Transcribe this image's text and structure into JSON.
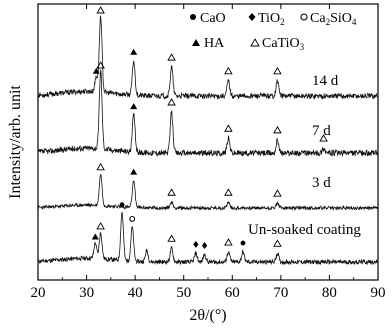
{
  "chart_data": {
    "type": "line",
    "xlabel": "2θ/(°)",
    "ylabel": "Intensity/arb. unit",
    "xlim": [
      20,
      90
    ],
    "xticks": [
      20,
      30,
      40,
      50,
      60,
      70,
      80,
      90
    ],
    "yticks": "none",
    "grid": false,
    "legend_placement": "top",
    "legend": {
      "CaO": "CaO",
      "TiO2": "TiO",
      "TiO2_sub": "2",
      "Ca2SiO4_prefix": "Ca",
      "Ca2SiO4_sub1": "2",
      "Ca2SiO4_mid": "SiO",
      "Ca2SiO4_sub2": "4",
      "HA": "HA",
      "CaTiO3": "CaTiO",
      "CaTiO3_sub": "3"
    },
    "markers": {
      "CaTiO3": "open-triangle",
      "HA": "filled-triangle",
      "CaO": "filled-circle",
      "TiO2": "filled-diamond",
      "Ca2SiO4": "open-circle"
    },
    "series": [
      {
        "name": "Un-soaked coating",
        "peaks": [
          {
            "x": 31.8,
            "h": 0.25,
            "phase": "HA"
          },
          {
            "x": 32.9,
            "h": 0.42,
            "phase": "CaTiO3"
          },
          {
            "x": 37.3,
            "h": 0.78,
            "phase": "CaO"
          },
          {
            "x": 39.4,
            "h": 0.55,
            "phase": "Ca2SiO4"
          },
          {
            "x": 42.4,
            "h": 0.18,
            "phase": ""
          },
          {
            "x": 47.5,
            "h": 0.22,
            "phase": "CaTiO3"
          },
          {
            "x": 52.5,
            "h": 0.14,
            "phase": "TiO2"
          },
          {
            "x": 54.3,
            "h": 0.12,
            "phase": "TiO2"
          },
          {
            "x": 59.2,
            "h": 0.16,
            "phase": "CaTiO3"
          },
          {
            "x": 62.2,
            "h": 0.16,
            "phase": "CaO"
          },
          {
            "x": 69.3,
            "h": 0.14,
            "phase": "CaTiO3"
          }
        ]
      },
      {
        "name": "3 d",
        "peaks": [
          {
            "x": 32.9,
            "h": 0.65,
            "phase": "CaTiO3"
          },
          {
            "x": 39.7,
            "h": 0.55,
            "phase": "HA"
          },
          {
            "x": 47.5,
            "h": 0.12,
            "phase": "CaTiO3"
          },
          {
            "x": 59.2,
            "h": 0.12,
            "phase": "CaTiO3"
          },
          {
            "x": 69.3,
            "h": 0.1,
            "phase": "CaTiO3"
          }
        ]
      },
      {
        "name": "7 d",
        "peaks": [
          {
            "x": 32.9,
            "h": 0.95,
            "phase": "CaTiO3"
          },
          {
            "x": 39.7,
            "h": 0.45,
            "phase": "HA"
          },
          {
            "x": 47.5,
            "h": 0.5,
            "phase": "CaTiO3"
          },
          {
            "x": 59.2,
            "h": 0.18,
            "phase": "CaTiO3"
          },
          {
            "x": 69.3,
            "h": 0.16,
            "phase": "CaTiO3"
          },
          {
            "x": 78.8,
            "h": 0.06,
            "phase": "CaTiO3"
          }
        ]
      },
      {
        "name": "14 d",
        "peaks": [
          {
            "x": 32.0,
            "h": 0.2,
            "phase": "HA"
          },
          {
            "x": 32.9,
            "h": 1.0,
            "phase": "CaTiO3"
          },
          {
            "x": 39.7,
            "h": 0.45,
            "phase": "HA"
          },
          {
            "x": 47.5,
            "h": 0.38,
            "phase": "CaTiO3"
          },
          {
            "x": 59.2,
            "h": 0.2,
            "phase": "CaTiO3"
          },
          {
            "x": 69.3,
            "h": 0.2,
            "phase": "CaTiO3"
          }
        ]
      }
    ]
  }
}
